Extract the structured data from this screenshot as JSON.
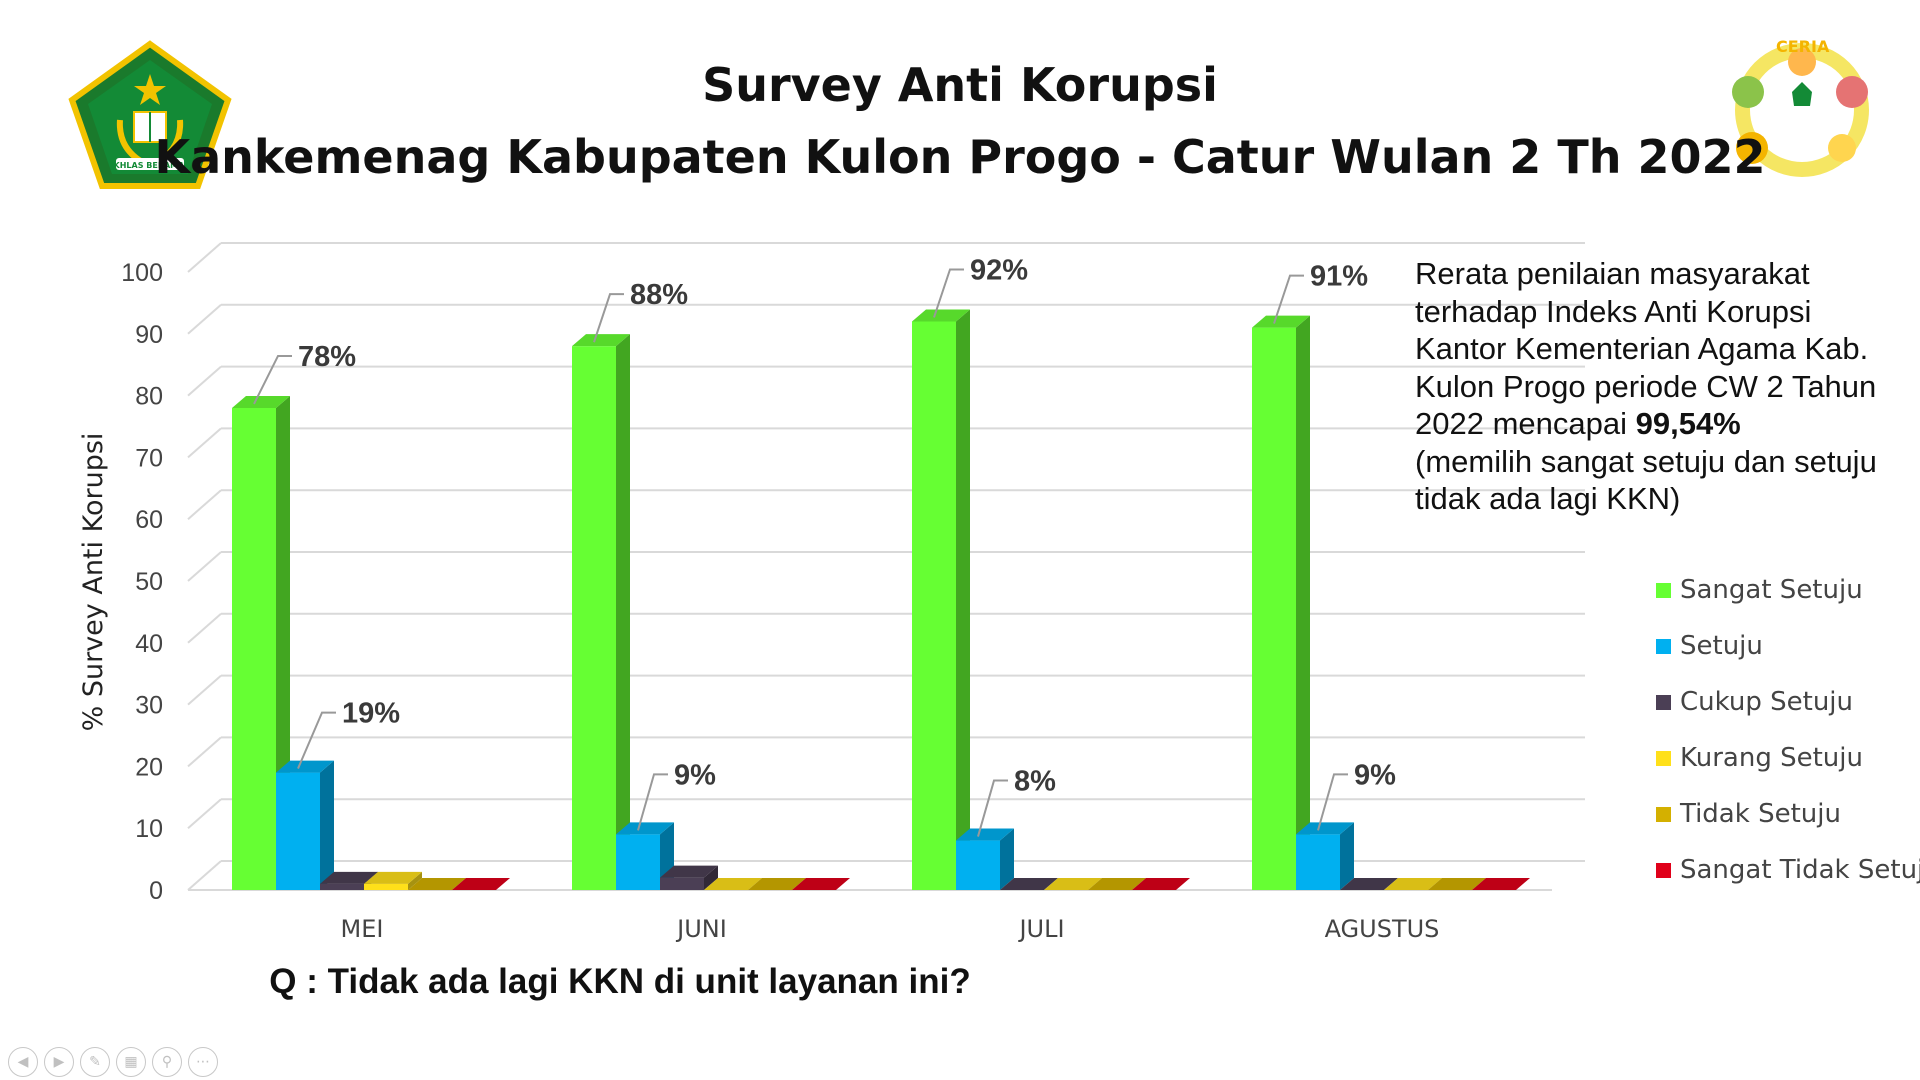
{
  "title_line1": "Survey Anti Korupsi",
  "title_line2": "Kankemenag Kabupaten Kulon Progo - Catur Wulan 2 Th 2022",
  "logo_left": {
    "icon": "kemenag-emblem-icon",
    "text": "IKHLAS BERAMAL"
  },
  "logo_right": {
    "icon": "ceria-badge-icon",
    "text": "CERIA"
  },
  "note": {
    "text_before": "Rerata penilaian masyarakat terhadap Indeks Anti Korupsi Kantor Kementerian Agama Kab. Kulon Progo periode CW 2 Tahun 2022 mencapai ",
    "highlight": "99,54%",
    "text_after": "(memilih sangat setuju dan setuju tidak ada lagi KKN)"
  },
  "question": "Q : Tidak ada lagi KKN di unit layanan ini?",
  "toolbar": [
    "prev-icon",
    "next-icon",
    "pen-icon",
    "slides-icon",
    "zoom-icon",
    "more-icon"
  ],
  "chart_data": {
    "type": "bar",
    "title": "",
    "xlabel": "",
    "ylabel": "% Survey Anti Korupsi",
    "ylim": [
      0,
      100
    ],
    "yticks": [
      0,
      10,
      20,
      30,
      40,
      50,
      60,
      70,
      80,
      90,
      100
    ],
    "categories": [
      "MEI",
      "JUNI",
      "JULI",
      "AGUSTUS"
    ],
    "series": [
      {
        "name": "Sangat Setuju",
        "color": "#66ff33",
        "values": [
          78,
          88,
          92,
          91
        ],
        "labels": [
          "78%",
          "88%",
          "92%",
          "91%"
        ]
      },
      {
        "name": "Setuju",
        "color": "#00b0f0",
        "values": [
          19,
          9,
          8,
          9
        ],
        "labels": [
          "19%",
          "9%",
          "8%",
          "9%"
        ]
      },
      {
        "name": "Cukup Setuju",
        "color": "#4b3f55",
        "values": [
          1,
          2,
          0,
          0
        ],
        "labels": [
          "",
          "",
          "",
          ""
        ]
      },
      {
        "name": "Kurang Setuju",
        "color": "#ffe01a",
        "values": [
          1,
          0,
          0,
          0
        ],
        "labels": [
          "",
          "",
          "",
          ""
        ]
      },
      {
        "name": "Tidak Setuju",
        "color": "#d4b000",
        "values": [
          0,
          0,
          0,
          0
        ],
        "labels": [
          "",
          "",
          "",
          ""
        ]
      },
      {
        "name": "Sangat Tidak Setuju",
        "color": "#e0001a",
        "values": [
          0,
          0,
          0,
          0
        ],
        "labels": [
          "",
          "",
          "",
          ""
        ]
      }
    ],
    "grid": true,
    "legend": "right",
    "style": "3d-clustered-column"
  }
}
